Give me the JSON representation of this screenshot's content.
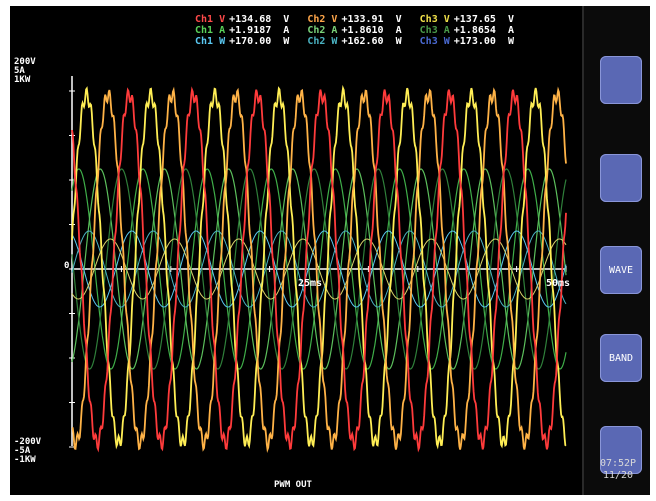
{
  "readout": {
    "rows": [
      [
        {
          "label": "Ch1 V",
          "value": "+134.68  V",
          "color": "#ff4a4a"
        },
        {
          "label": "Ch2 V",
          "value": "+133.91  V",
          "color": "#ffa64a"
        },
        {
          "label": "Ch3 V",
          "value": "+137.65  V",
          "color": "#f2e24a"
        }
      ],
      [
        {
          "label": "Ch1 A",
          "value": "+1.9187  A",
          "color": "#5ad25a"
        },
        {
          "label": "Ch2 A",
          "value": "+1.8610  A",
          "color": "#7ad27a"
        },
        {
          "label": "Ch3 A",
          "value": "+1.8654  A",
          "color": "#4a9a4a"
        }
      ],
      [
        {
          "label": "Ch1 W",
          "value": "+170.00  W",
          "color": "#5ac8f2"
        },
        {
          "label": "Ch2 W",
          "value": "+162.60  W",
          "color": "#4ab2c2"
        },
        {
          "label": "Ch3 W",
          "value": "+173.00  W",
          "color": "#4a6ad2"
        }
      ]
    ]
  },
  "y_axis": {
    "top": [
      "200V",
      "5A",
      "1KW"
    ],
    "zero": "0",
    "bottom": [
      "-200V",
      "-5A",
      "-1KW"
    ]
  },
  "x_axis": {
    "mid": "25ms",
    "end": "50ms"
  },
  "footer": "PWM OUT",
  "softkeys": [
    "",
    "",
    "WAVE",
    "BAND",
    ""
  ],
  "clock": {
    "time": "07:52P",
    "date": "11/20"
  },
  "colors": {
    "ch1_v": "#ff3b3b",
    "ch2_v": "#ffb347",
    "ch3_v": "#ffee55",
    "ch1_a": "#3fae49",
    "ch2_a": "#5cbf5c",
    "ch3_a": "#2f7f3a",
    "ch1_w": "#5ac8f2",
    "ch2_w": "#4ab2c2",
    "ch3_w": "#d9d36a"
  }
}
